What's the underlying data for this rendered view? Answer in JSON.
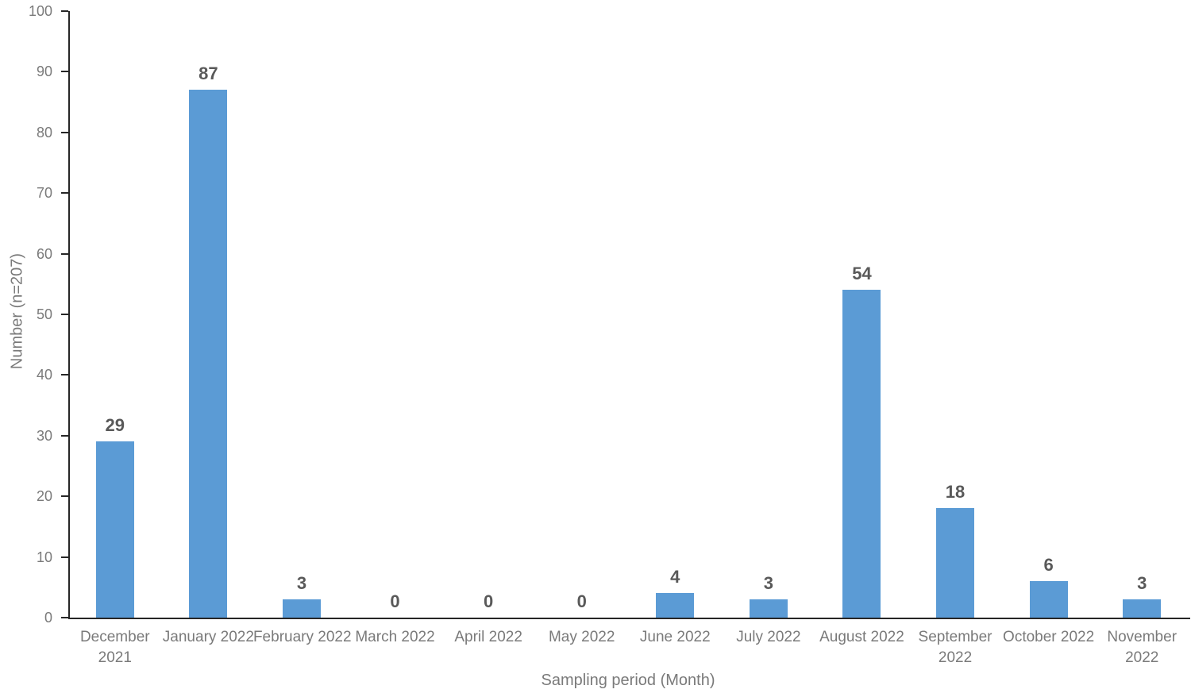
{
  "chart_data": {
    "type": "bar",
    "title": "",
    "categories": [
      "December\n2021",
      "January 2022",
      "February 2022",
      "March 2022",
      "April 2022",
      "May 2022",
      "June 2022",
      "July 2022",
      "August 2022",
      "September\n2022",
      "October 2022",
      "November\n2022"
    ],
    "values": [
      29,
      87,
      3,
      0,
      0,
      0,
      4,
      3,
      54,
      18,
      6,
      3
    ],
    "xlabel": "Sampling period (Month)",
    "ylabel": "Number (n=207)",
    "ylim": [
      0,
      100
    ],
    "yticks": [
      0,
      10,
      20,
      30,
      40,
      50,
      60,
      70,
      80,
      90,
      100
    ],
    "grid": false,
    "legend_position": "none",
    "colors": {
      "bar": "#5B9BD5",
      "data_label": "#595959",
      "axis_text": "#7a7a7a",
      "axis_line": "#262626"
    }
  }
}
